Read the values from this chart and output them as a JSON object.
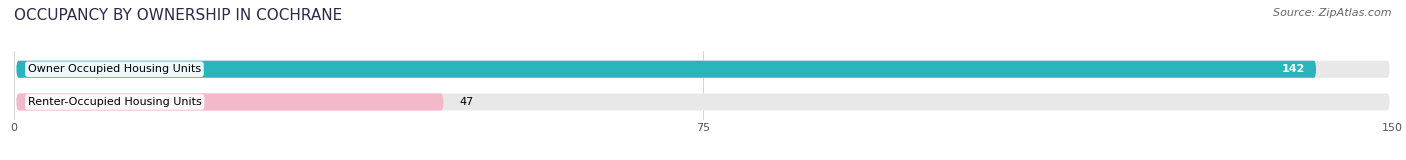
{
  "title": "OCCUPANCY BY OWNERSHIP IN COCHRANE",
  "source": "Source: ZipAtlas.com",
  "categories": [
    "Owner Occupied Housing Units",
    "Renter-Occupied Housing Units"
  ],
  "values": [
    142,
    47
  ],
  "bar_colors": [
    "#2ab5bc",
    "#f5b8cb"
  ],
  "value_label_colors": [
    "white",
    "black"
  ],
  "bar_bg_color": "#e8e8e8",
  "xlim": [
    0,
    150
  ],
  "xticks": [
    0,
    75,
    150
  ],
  "title_fontsize": 11,
  "label_fontsize": 8.0,
  "value_fontsize": 8.0,
  "source_fontsize": 8,
  "bar_height": 0.52,
  "background_color": "#ffffff",
  "title_color": "#2b2b4b",
  "source_color": "#666666"
}
